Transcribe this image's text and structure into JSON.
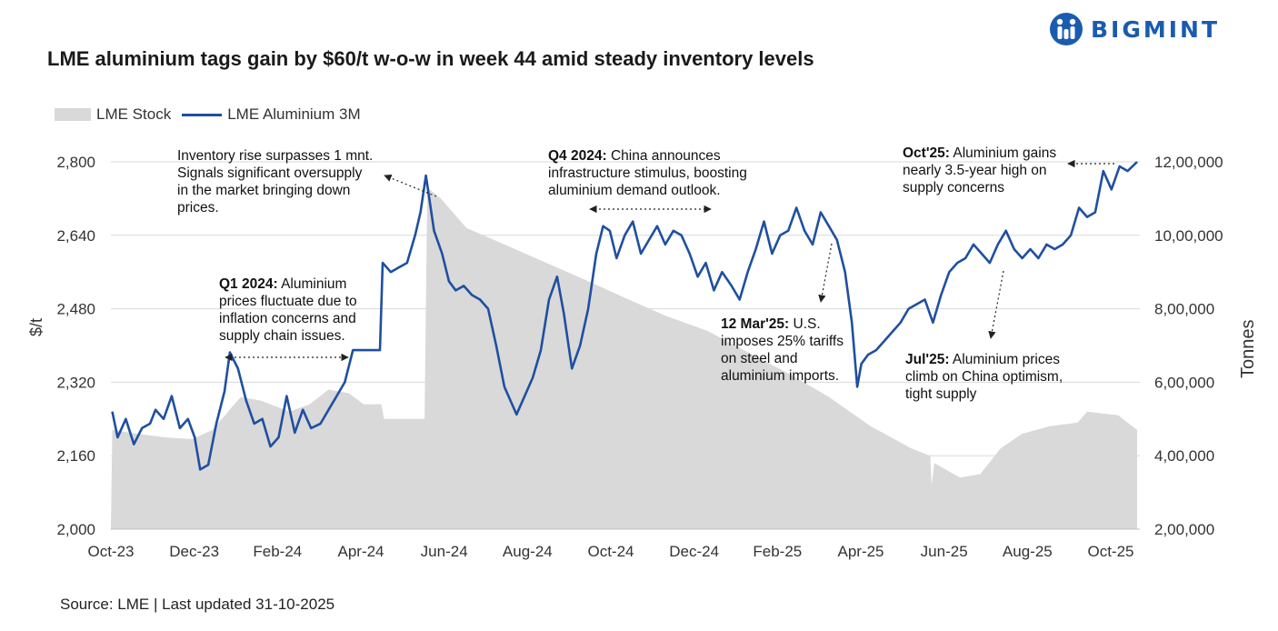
{
  "title": "LME aluminium tags gain by $60/t w-o-w in week 44 amid steady inventory levels",
  "brand": "BIGMINT",
  "source": "Source: LME | Last updated 31-10-2025",
  "colors": {
    "price_line": "#1f4fa0",
    "stock_area": "#d9d9d9",
    "brand": "#1a5bb0"
  },
  "annotations": [
    {
      "id": "inventory",
      "bold": "",
      "lines": [
        "Inventory rise surpasses 1 mnt.",
        "Signals significant oversupply",
        "in the market bringing down",
        "prices."
      ]
    },
    {
      "id": "q1-2024",
      "bold": "Q1 2024:",
      "lines": [
        " Aluminium",
        "prices fluctuate due to",
        "inflation concerns and",
        "supply chain issues."
      ]
    },
    {
      "id": "q4-2024",
      "bold": "Q4 2024:",
      "lines": [
        " China announces",
        "infrastructure stimulus, boosting",
        "aluminium demand outlook."
      ]
    },
    {
      "id": "mar25",
      "bold": "12 Mar'25:",
      "lines": [
        " U.S.",
        "imposes 25% tariffs",
        "on steel and",
        "aluminium imports."
      ]
    },
    {
      "id": "jul25",
      "bold": "Jul'25:",
      "lines": [
        " Aluminium prices",
        "climb on China optimism,",
        "tight supply"
      ]
    },
    {
      "id": "oct25",
      "bold": "Oct'25:",
      "lines": [
        " Aluminium gains",
        "nearly 3.5-year high on",
        "supply concerns"
      ]
    }
  ],
  "chart_data": {
    "type": "line",
    "title": "LME aluminium tags gain by $60/t w-o-w in week 44 amid steady inventory levels",
    "legend": [
      "LME Stock",
      "LME Aluminium 3M"
    ],
    "legend_position": "top-left",
    "grid": "horizontal",
    "x_ticks": [
      "Oct-23",
      "Dec-23",
      "Feb-24",
      "Apr-24",
      "Jun-24",
      "Aug-24",
      "Oct-24",
      "Dec-24",
      "Feb-25",
      "Apr-25",
      "Jun-25",
      "Aug-25",
      "Oct-25"
    ],
    "y_left": {
      "label": "$/t",
      "ticks": [
        "2,000",
        "2,160",
        "2,320",
        "2,480",
        "2,640",
        "2,800"
      ],
      "range": [
        2000,
        2800
      ]
    },
    "y_right": {
      "label": "Tonnes",
      "ticks": [
        "2,00,000",
        "4,00,000",
        "6,00,000",
        "8,00,000",
        "10,00,000",
        "12,00,000"
      ],
      "range": [
        200000,
        1200000
      ]
    },
    "series": [
      {
        "name": "LME Aluminium 3M",
        "type": "line",
        "axis": "left",
        "points": [
          [
            "2023-10-02",
            2256
          ],
          [
            "2023-10-06",
            2200
          ],
          [
            "2023-10-12",
            2240
          ],
          [
            "2023-10-18",
            2185
          ],
          [
            "2023-10-24",
            2220
          ],
          [
            "2023-10-30",
            2230
          ],
          [
            "2023-11-03",
            2260
          ],
          [
            "2023-11-09",
            2240
          ],
          [
            "2023-11-15",
            2290
          ],
          [
            "2023-11-21",
            2220
          ],
          [
            "2023-11-27",
            2240
          ],
          [
            "2023-12-02",
            2200
          ],
          [
            "2023-12-06",
            2130
          ],
          [
            "2023-12-12",
            2140
          ],
          [
            "2023-12-18",
            2230
          ],
          [
            "2023-12-24",
            2300
          ],
          [
            "2023-12-28",
            2385
          ],
          [
            "2024-01-03",
            2350
          ],
          [
            "2024-01-09",
            2280
          ],
          [
            "2024-01-15",
            2230
          ],
          [
            "2024-01-21",
            2240
          ],
          [
            "2024-01-27",
            2180
          ],
          [
            "2024-02-02",
            2200
          ],
          [
            "2024-02-08",
            2290
          ],
          [
            "2024-02-14",
            2210
          ],
          [
            "2024-02-20",
            2260
          ],
          [
            "2024-02-26",
            2220
          ],
          [
            "2024-03-04",
            2230
          ],
          [
            "2024-03-10",
            2260
          ],
          [
            "2024-03-16",
            2290
          ],
          [
            "2024-03-22",
            2320
          ],
          [
            "2024-03-28",
            2390
          ],
          [
            "2024-04-05",
            2390
          ],
          [
            "2024-04-12",
            2390
          ],
          [
            "2024-04-17",
            2390
          ],
          [
            "2024-04-19",
            2580
          ],
          [
            "2024-04-25",
            2560
          ],
          [
            "2024-05-01",
            2570
          ],
          [
            "2024-05-07",
            2580
          ],
          [
            "2024-05-13",
            2640
          ],
          [
            "2024-05-17",
            2690
          ],
          [
            "2024-05-21",
            2770
          ],
          [
            "2024-05-27",
            2650
          ],
          [
            "2024-06-02",
            2600
          ],
          [
            "2024-06-07",
            2540
          ],
          [
            "2024-06-12",
            2520
          ],
          [
            "2024-06-18",
            2530
          ],
          [
            "2024-06-24",
            2510
          ],
          [
            "2024-06-30",
            2500
          ],
          [
            "2024-07-06",
            2480
          ],
          [
            "2024-07-12",
            2400
          ],
          [
            "2024-07-18",
            2310
          ],
          [
            "2024-07-24",
            2270
          ],
          [
            "2024-07-27",
            2250
          ],
          [
            "2024-08-02",
            2290
          ],
          [
            "2024-08-08",
            2330
          ],
          [
            "2024-08-14",
            2390
          ],
          [
            "2024-08-20",
            2500
          ],
          [
            "2024-08-26",
            2550
          ],
          [
            "2024-08-31",
            2470
          ],
          [
            "2024-09-06",
            2350
          ],
          [
            "2024-09-12",
            2400
          ],
          [
            "2024-09-18",
            2480
          ],
          [
            "2024-09-24",
            2600
          ],
          [
            "2024-09-29",
            2660
          ],
          [
            "2024-10-04",
            2650
          ],
          [
            "2024-10-09",
            2590
          ],
          [
            "2024-10-15",
            2640
          ],
          [
            "2024-10-21",
            2670
          ],
          [
            "2024-10-27",
            2600
          ],
          [
            "2024-11-02",
            2630
          ],
          [
            "2024-11-08",
            2660
          ],
          [
            "2024-11-14",
            2620
          ],
          [
            "2024-11-20",
            2650
          ],
          [
            "2024-11-26",
            2640
          ],
          [
            "2024-12-02",
            2600
          ],
          [
            "2024-12-08",
            2550
          ],
          [
            "2024-12-14",
            2580
          ],
          [
            "2024-12-20",
            2520
          ],
          [
            "2024-12-26",
            2560
          ],
          [
            "2025-01-02",
            2530
          ],
          [
            "2025-01-08",
            2500
          ],
          [
            "2025-01-14",
            2560
          ],
          [
            "2025-01-20",
            2610
          ],
          [
            "2025-01-26",
            2670
          ],
          [
            "2025-02-01",
            2600
          ],
          [
            "2025-02-07",
            2640
          ],
          [
            "2025-02-13",
            2650
          ],
          [
            "2025-02-19",
            2700
          ],
          [
            "2025-02-25",
            2650
          ],
          [
            "2025-03-03",
            2620
          ],
          [
            "2025-03-09",
            2690
          ],
          [
            "2025-03-15",
            2660
          ],
          [
            "2025-03-21",
            2630
          ],
          [
            "2025-03-27",
            2560
          ],
          [
            "2025-04-01",
            2450
          ],
          [
            "2025-04-05",
            2310
          ],
          [
            "2025-04-08",
            2360
          ],
          [
            "2025-04-13",
            2380
          ],
          [
            "2025-04-19",
            2390
          ],
          [
            "2025-04-25",
            2410
          ],
          [
            "2025-05-01",
            2430
          ],
          [
            "2025-05-07",
            2450
          ],
          [
            "2025-05-13",
            2480
          ],
          [
            "2025-05-19",
            2490
          ],
          [
            "2025-05-25",
            2500
          ],
          [
            "2025-05-31",
            2450
          ],
          [
            "2025-06-06",
            2510
          ],
          [
            "2025-06-12",
            2560
          ],
          [
            "2025-06-18",
            2580
          ],
          [
            "2025-06-24",
            2590
          ],
          [
            "2025-06-30",
            2620
          ],
          [
            "2025-07-06",
            2600
          ],
          [
            "2025-07-12",
            2580
          ],
          [
            "2025-07-18",
            2620
          ],
          [
            "2025-07-24",
            2650
          ],
          [
            "2025-07-30",
            2610
          ],
          [
            "2025-08-05",
            2590
          ],
          [
            "2025-08-11",
            2610
          ],
          [
            "2025-08-17",
            2590
          ],
          [
            "2025-08-23",
            2620
          ],
          [
            "2025-08-29",
            2610
          ],
          [
            "2025-09-04",
            2620
          ],
          [
            "2025-09-10",
            2640
          ],
          [
            "2025-09-16",
            2700
          ],
          [
            "2025-09-22",
            2680
          ],
          [
            "2025-09-28",
            2690
          ],
          [
            "2025-10-04",
            2780
          ],
          [
            "2025-10-10",
            2740
          ],
          [
            "2025-10-16",
            2790
          ],
          [
            "2025-10-22",
            2780
          ],
          [
            "2025-10-29",
            2800
          ]
        ]
      },
      {
        "name": "LME Stock",
        "type": "area",
        "axis": "right",
        "points": [
          [
            "2023-10-02",
            470000
          ],
          [
            "2023-10-20",
            460000
          ],
          [
            "2023-11-10",
            450000
          ],
          [
            "2023-11-30",
            445000
          ],
          [
            "2023-12-15",
            470000
          ],
          [
            "2024-01-05",
            560000
          ],
          [
            "2024-01-20",
            550000
          ],
          [
            "2024-02-10",
            520000
          ],
          [
            "2024-02-25",
            540000
          ],
          [
            "2024-03-10",
            580000
          ],
          [
            "2024-03-25",
            570000
          ],
          [
            "2024-04-05",
            540000
          ],
          [
            "2024-04-18",
            540000
          ],
          [
            "2024-04-20",
            500000
          ],
          [
            "2024-05-20",
            500000
          ],
          [
            "2024-05-22",
            1130000
          ],
          [
            "2024-06-01",
            1100000
          ],
          [
            "2024-06-20",
            1020000
          ],
          [
            "2024-07-15",
            980000
          ],
          [
            "2024-08-15",
            930000
          ],
          [
            "2024-09-15",
            880000
          ],
          [
            "2024-10-15",
            830000
          ],
          [
            "2024-11-15",
            780000
          ],
          [
            "2024-12-15",
            740000
          ],
          [
            "2025-01-15",
            680000
          ],
          [
            "2025-02-15",
            620000
          ],
          [
            "2025-03-15",
            560000
          ],
          [
            "2025-04-15",
            480000
          ],
          [
            "2025-05-15",
            420000
          ],
          [
            "2025-05-29",
            400000
          ],
          [
            "2025-05-30",
            320000
          ],
          [
            "2025-06-01",
            380000
          ],
          [
            "2025-06-20",
            340000
          ],
          [
            "2025-07-05",
            350000
          ],
          [
            "2025-07-20",
            420000
          ],
          [
            "2025-08-05",
            460000
          ],
          [
            "2025-08-25",
            480000
          ],
          [
            "2025-09-15",
            490000
          ],
          [
            "2025-09-22",
            520000
          ],
          [
            "2025-10-15",
            510000
          ],
          [
            "2025-10-29",
            470000
          ]
        ]
      }
    ]
  }
}
